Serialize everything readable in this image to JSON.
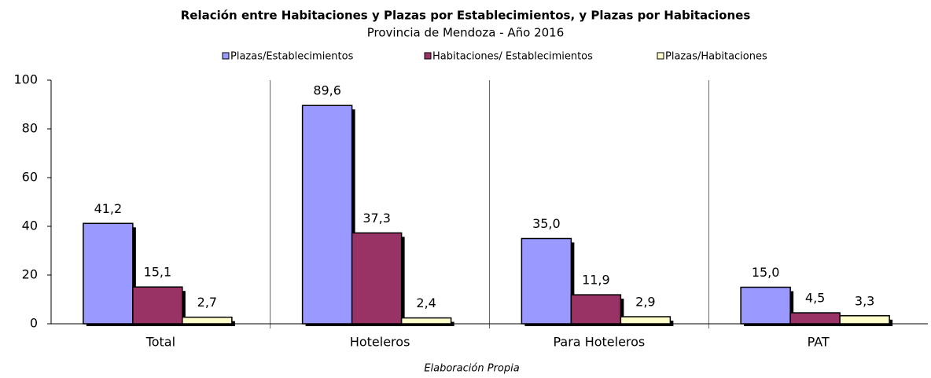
{
  "chart_data": {
    "type": "bar",
    "title": "Relación entre Habitaciones y Plazas por Establecimientos, y Plazas por Habitaciones",
    "subtitle": "Provincia de Mendoza - Año 2016",
    "note": "Elaboración Propia",
    "categories": [
      "Total",
      "Hoteleros",
      "Para Hoteleros",
      "PAT"
    ],
    "series": [
      {
        "name": "Plazas/Establecimientos",
        "color": "#9999ff",
        "values": [
          41.2,
          89.6,
          35.0,
          15.0
        ],
        "value_labels": [
          "41,2",
          "89,6",
          "35,0",
          "15,0"
        ]
      },
      {
        "name": "Habitaciones/ Establecimientos",
        "color": "#993366",
        "values": [
          15.1,
          37.3,
          11.9,
          4.5
        ],
        "value_labels": [
          "15,1",
          "37,3",
          "11,9",
          "4,5"
        ]
      },
      {
        "name": "Plazas/Habitaciones",
        "color": "#ffffcc",
        "values": [
          2.7,
          2.4,
          2.9,
          3.3
        ],
        "value_labels": [
          "2,7",
          "2,4",
          "2,9",
          "3,3"
        ]
      }
    ],
    "ylim": [
      0,
      100
    ],
    "yticks": [
      0,
      20,
      40,
      60,
      80,
      100
    ]
  }
}
